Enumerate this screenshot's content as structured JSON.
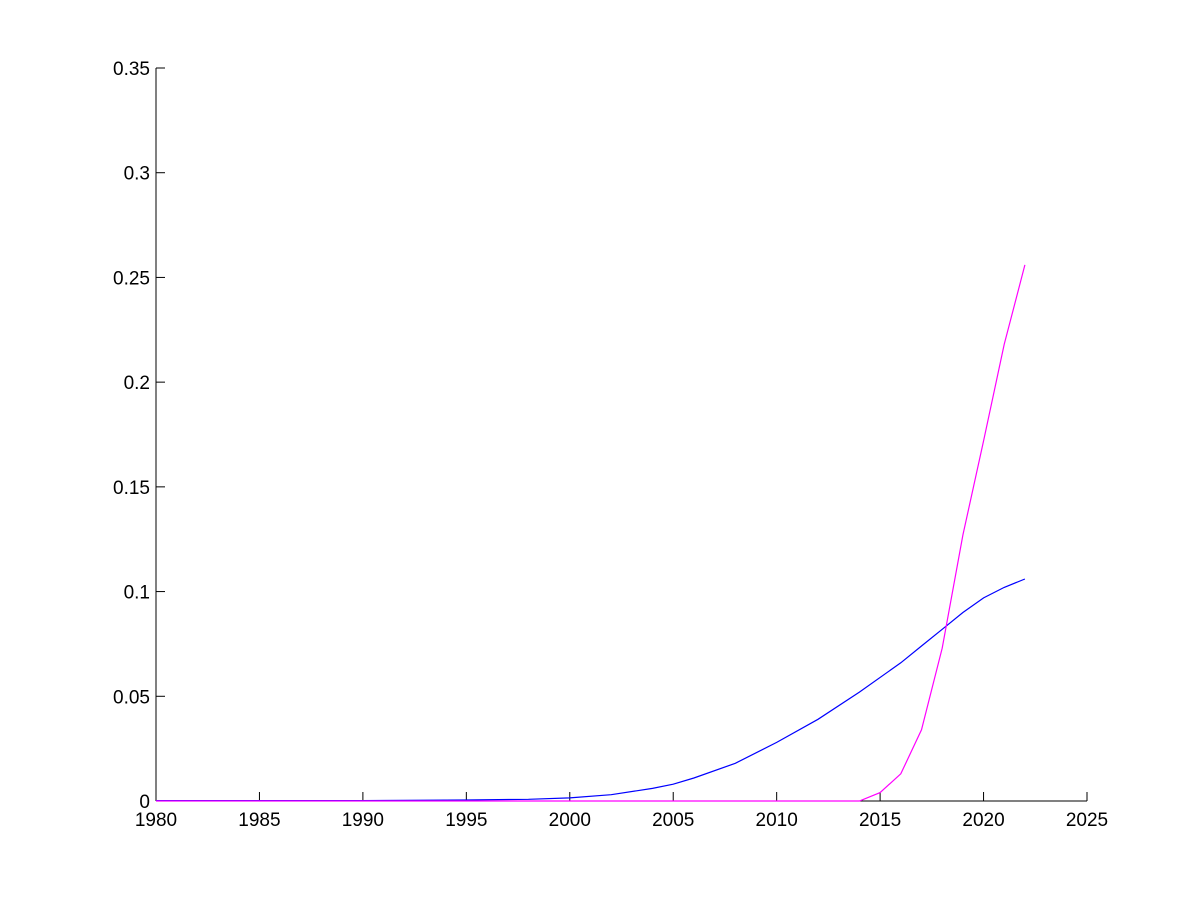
{
  "chart_data": {
    "type": "line",
    "title": "",
    "xlabel": "",
    "ylabel": "",
    "xlim": [
      1980,
      2025
    ],
    "ylim": [
      0,
      0.35
    ],
    "grid": false,
    "xticks": [
      "1980",
      "1985",
      "1990",
      "1995",
      "2000",
      "2005",
      "2010",
      "2015",
      "2020",
      "2025"
    ],
    "yticks": [
      "0",
      "0.05",
      "0.1",
      "0.15",
      "0.2",
      "0.25",
      "0.3",
      "0.35"
    ],
    "series": [
      {
        "color": "#0000ff",
        "x": [
          1980,
          1985,
          1990,
          1992,
          1995,
          1998,
          2000,
          2002,
          2004,
          2005,
          2006,
          2008,
          2010,
          2012,
          2014,
          2016,
          2017,
          2018,
          2019,
          2020,
          2021,
          2022
        ],
        "y": [
          0.0002,
          0.0002,
          0.0002,
          0.0003,
          0.0005,
          0.0008,
          0.0015,
          0.003,
          0.006,
          0.008,
          0.011,
          0.018,
          0.028,
          0.039,
          0.052,
          0.066,
          0.074,
          0.082,
          0.09,
          0.097,
          0.102,
          0.106
        ]
      },
      {
        "color": "#ff00ff",
        "x": [
          1980,
          2014,
          2015,
          2016,
          2017,
          2018,
          2019,
          2020,
          2021,
          2022
        ],
        "y": [
          0,
          0,
          0.004,
          0.013,
          0.034,
          0.073,
          0.127,
          0.172,
          0.218,
          0.256
        ]
      }
    ]
  }
}
